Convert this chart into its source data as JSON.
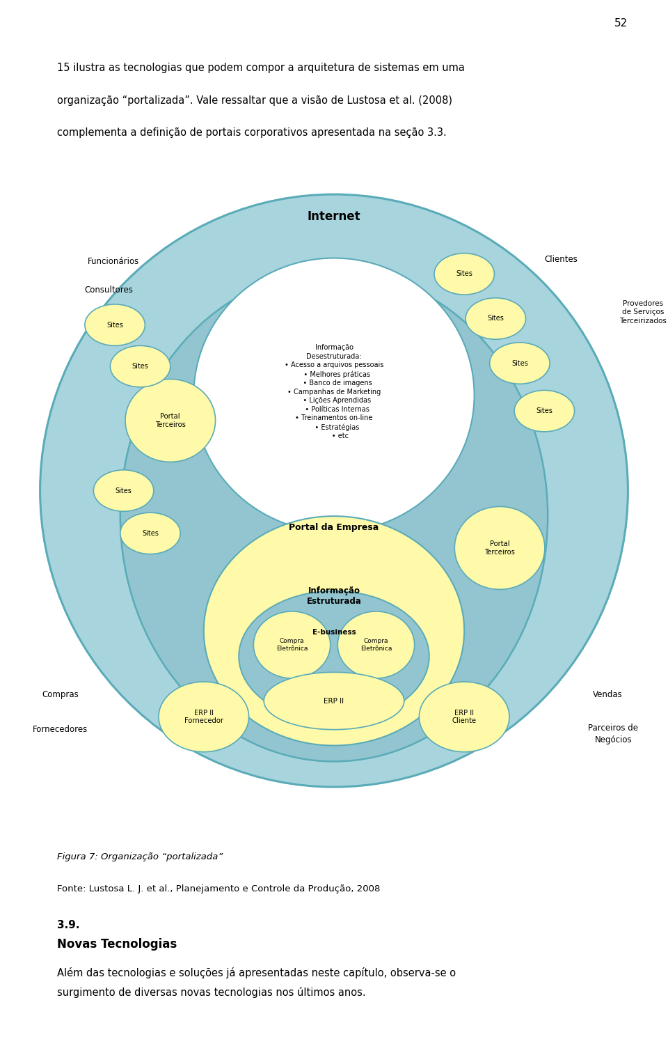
{
  "bg_color": "#ffffff",
  "blue_light": "#a8d4dd",
  "blue_mid": "#92c5cf",
  "yellow": "#fefaaa",
  "white": "#ffffff",
  "ec_color": "#5aabb8",
  "lw_outer": 2.0,
  "lw_inner": 1.6,
  "lw_small": 1.2,
  "page_num": "52",
  "top_text_line1": "15 ilustra as tecnologias que podem compor a arquitetura de sistemas em uma",
  "top_text_line2": "organização “portalizada”. Vale ressaltar que a visão de Lustosa et al. (2008)",
  "top_text_line3": "complementa a definição de portais corporativos apresentada na seção 3.3.",
  "caption1": "Figura 7: Organização “portalizada”",
  "caption2": "Fonte: Lustosa L. J. et al., Planejamento e Controle da Produção, 2008",
  "section_num": "3.9.",
  "section_title": "Novas Tecnologias",
  "body_line1": "Além das tecnologias e soluções já apresentadas neste capítulo, observa-se o",
  "body_line2": "surgimento de diversas novas tecnologias nos últimos anos.",
  "info_dest_text": "Informação\nDesestruturada:\n• Acesso a arquivos pessoais\n   • Melhores práticas\n   • Banco de imagens\n• Campanhas de Marketing\n   • Lições Aprendidas\n   • Políticas Internas\n• Treinamentos on-line\n   • Estratégias\n      • etc"
}
